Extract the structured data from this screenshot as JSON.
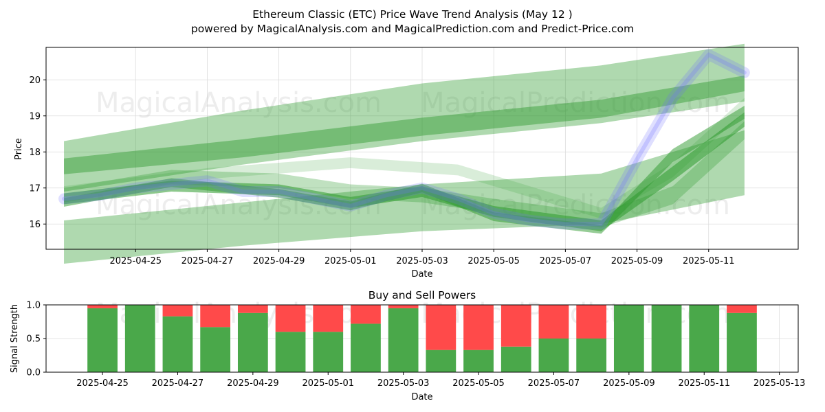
{
  "title_line1": "Ethereum Classic (ETC) Price Wave Trend Analysis (May 12 )",
  "title_line2": "powered by MagicalAnalysis.com and MagicalPrediction.com and Predict-Price.com",
  "watermarks": [
    "MagicalAnalysis.com",
    "MagicalPrediction.com"
  ],
  "colors": {
    "band": "#2e9a2e",
    "price": "#6f6fff",
    "buy": "#4aa84a",
    "sell": "#ff4a4a",
    "grid": "#dcdcdc"
  },
  "chart_data": [
    {
      "type": "area",
      "xlabel": "Date",
      "ylabel": "Price",
      "xlim": [
        "2025-04-22T12:00",
        "2025-05-13T12:00"
      ],
      "ylim": [
        15.3,
        20.9
      ],
      "xticks": [
        "2025-04-25",
        "2025-04-27",
        "2025-04-29",
        "2025-05-01",
        "2025-05-03",
        "2025-05-05",
        "2025-05-07",
        "2025-05-09",
        "2025-05-11"
      ],
      "yticks": [
        16,
        17,
        18,
        19,
        20
      ],
      "grid": true,
      "price_series": {
        "x": [
          "2025-04-23",
          "2025-04-24",
          "2025-04-25",
          "2025-04-26",
          "2025-04-27",
          "2025-04-28",
          "2025-04-29",
          "2025-04-30",
          "2025-05-01",
          "2025-05-02",
          "2025-05-03",
          "2025-05-04",
          "2025-05-05",
          "2025-05-06",
          "2025-05-07",
          "2025-05-08",
          "2025-05-09",
          "2025-05-10",
          "2025-05-11",
          "2025-05-12"
        ],
        "values": [
          16.7,
          16.8,
          17.0,
          17.1,
          17.2,
          16.9,
          16.9,
          16.7,
          16.5,
          16.8,
          17.0,
          16.7,
          16.3,
          16.1,
          16.0,
          16.0,
          17.8,
          19.5,
          20.7,
          20.2
        ]
      },
      "bands": [
        {
          "x": [
            "2025-04-23",
            "2025-04-28",
            "2025-05-03",
            "2025-05-08",
            "2025-05-12"
          ],
          "center": [
            17.6,
            18.4,
            19.1,
            19.6,
            20.2
          ],
          "half_width": [
            0.7,
            0.75,
            0.8,
            0.8,
            0.8
          ],
          "opacity": 0.38
        },
        {
          "x": [
            "2025-04-23",
            "2025-04-28",
            "2025-05-03",
            "2025-05-08",
            "2025-05-12"
          ],
          "center": [
            17.6,
            18.1,
            18.7,
            19.2,
            19.9
          ],
          "half_width": [
            0.22,
            0.25,
            0.25,
            0.25,
            0.22
          ],
          "opacity": 0.45
        },
        {
          "x": [
            "2025-04-23",
            "2025-04-28",
            "2025-05-03",
            "2025-05-08",
            "2025-05-12"
          ],
          "center": [
            15.5,
            16.0,
            16.45,
            16.7,
            17.7
          ],
          "half_width": [
            0.6,
            0.6,
            0.65,
            0.7,
            0.9
          ],
          "opacity": 0.38
        },
        {
          "x": [
            "2025-04-23",
            "2025-04-26",
            "2025-04-29",
            "2025-05-01",
            "2025-05-03",
            "2025-05-05",
            "2025-05-08",
            "2025-05-10",
            "2025-05-12"
          ],
          "center": [
            16.7,
            17.05,
            16.95,
            16.6,
            16.9,
            16.35,
            15.95,
            17.4,
            18.9
          ],
          "half_width": [
            0.15,
            0.15,
            0.15,
            0.15,
            0.15,
            0.15,
            0.15,
            0.2,
            0.2
          ],
          "opacity": 0.55
        },
        {
          "x": [
            "2025-04-23",
            "2025-04-26",
            "2025-04-29",
            "2025-05-01",
            "2025-05-03",
            "2025-05-05",
            "2025-05-08",
            "2025-05-10",
            "2025-05-12"
          ],
          "center": [
            16.6,
            17.15,
            16.85,
            16.5,
            17.0,
            16.2,
            15.85,
            17.9,
            19.1
          ],
          "half_width": [
            0.12,
            0.12,
            0.12,
            0.12,
            0.12,
            0.12,
            0.12,
            0.18,
            0.18
          ],
          "opacity": 0.5
        },
        {
          "x": [
            "2025-04-23",
            "2025-04-26",
            "2025-04-29",
            "2025-05-01",
            "2025-05-03",
            "2025-05-05",
            "2025-05-08",
            "2025-05-10",
            "2025-05-12"
          ],
          "center": [
            16.8,
            17.3,
            17.2,
            16.9,
            16.8,
            16.5,
            16.1,
            16.8,
            18.6
          ],
          "half_width": [
            0.2,
            0.2,
            0.2,
            0.2,
            0.2,
            0.2,
            0.2,
            0.25,
            0.25
          ],
          "opacity": 0.3
        },
        {
          "x": [
            "2025-04-23",
            "2025-04-27",
            "2025-05-01",
            "2025-05-04",
            "2025-05-08",
            "2025-05-10",
            "2025-05-12"
          ],
          "center": [
            16.9,
            17.4,
            17.7,
            17.5,
            16.3,
            17.5,
            19.3
          ],
          "half_width": [
            0.15,
            0.15,
            0.15,
            0.15,
            0.15,
            0.2,
            0.2
          ],
          "opacity": 0.18
        }
      ]
    },
    {
      "type": "bar",
      "title": "Buy and Sell Powers",
      "xlabel": "Date",
      "ylabel": "Signal Strength",
      "xlim": [
        "2025-04-23T12:00",
        "2025-05-13T12:00"
      ],
      "ylim": [
        0,
        1.0
      ],
      "xticks": [
        "2025-04-25",
        "2025-04-27",
        "2025-04-29",
        "2025-05-01",
        "2025-05-03",
        "2025-05-05",
        "2025-05-07",
        "2025-05-09",
        "2025-05-11",
        "2025-05-13"
      ],
      "yticks": [
        "0.0",
        "0.5",
        "1.0"
      ],
      "categories": [
        "2025-04-25",
        "2025-04-26",
        "2025-04-27",
        "2025-04-28",
        "2025-04-29",
        "2025-04-30",
        "2025-05-01",
        "2025-05-02",
        "2025-05-03",
        "2025-05-04",
        "2025-05-05",
        "2025-05-06",
        "2025-05-07",
        "2025-05-08",
        "2025-05-09",
        "2025-05-10",
        "2025-05-11",
        "2025-05-12"
      ],
      "series": [
        {
          "values": [
            0.95,
            1.0,
            0.83,
            0.67,
            0.88,
            0.6,
            0.6,
            0.72,
            0.95,
            0.33,
            0.33,
            0.38,
            0.5,
            0.5,
            1.0,
            1.0,
            1.0,
            0.88
          ]
        },
        {
          "values": [
            0.05,
            0.0,
            0.17,
            0.33,
            0.12,
            0.4,
            0.4,
            0.28,
            0.05,
            0.67,
            0.67,
            0.62,
            0.5,
            0.5,
            0.0,
            0.0,
            0.0,
            0.12
          ]
        }
      ]
    }
  ]
}
